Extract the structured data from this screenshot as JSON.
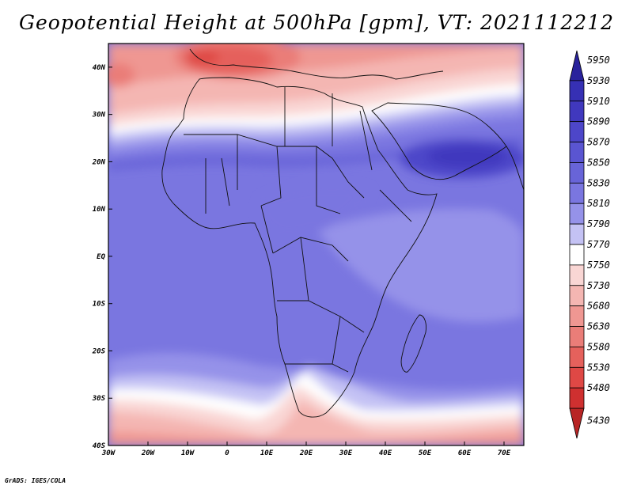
{
  "title": "Geopotential Height at 500hPa [gpm], VT: 2021112212",
  "credit": "GrADS: IGES/COLA",
  "map": {
    "lon_range": [
      -30,
      75
    ],
    "lat_range": [
      -40,
      45
    ],
    "lon_ticks": [
      {
        "value": -30,
        "label": "30W"
      },
      {
        "value": -20,
        "label": "20W"
      },
      {
        "value": -10,
        "label": "10W"
      },
      {
        "value": 0,
        "label": "0"
      },
      {
        "value": 10,
        "label": "10E"
      },
      {
        "value": 20,
        "label": "20E"
      },
      {
        "value": 30,
        "label": "30E"
      },
      {
        "value": 40,
        "label": "40E"
      },
      {
        "value": 50,
        "label": "50E"
      },
      {
        "value": 60,
        "label": "60E"
      },
      {
        "value": 70,
        "label": "70E"
      }
    ],
    "lat_ticks": [
      {
        "value": 40,
        "label": "40N"
      },
      {
        "value": 30,
        "label": "30N"
      },
      {
        "value": 20,
        "label": "20N"
      },
      {
        "value": 10,
        "label": "10N"
      },
      {
        "value": 0,
        "label": "EQ"
      },
      {
        "value": -10,
        "label": "10S"
      },
      {
        "value": -20,
        "label": "20S"
      },
      {
        "value": -30,
        "label": "30S"
      },
      {
        "value": -40,
        "label": "40S"
      }
    ]
  },
  "colorbar": {
    "levels": [
      {
        "label": "5950",
        "color": "#29229c"
      },
      {
        "label": "5930",
        "color": "#3630b4"
      },
      {
        "label": "5910",
        "color": "#4038be"
      },
      {
        "label": "5890",
        "color": "#4d46c9"
      },
      {
        "label": "5870",
        "color": "#5a55d1"
      },
      {
        "label": "5850",
        "color": "#6864d8"
      },
      {
        "label": "5830",
        "color": "#7a76e0"
      },
      {
        "label": "5810",
        "color": "#9592e9"
      },
      {
        "label": "5790",
        "color": "#c4c2f4"
      },
      {
        "label": "5770",
        "color": "#ffffff"
      },
      {
        "label": "5750",
        "color": "#f9d6d4"
      },
      {
        "label": "5730",
        "color": "#f4b6b2"
      },
      {
        "label": "5680",
        "color": "#ef9792"
      },
      {
        "label": "5630",
        "color": "#ea7d78"
      },
      {
        "label": "5580",
        "color": "#e5615c"
      },
      {
        "label": "5530",
        "color": "#df4845"
      },
      {
        "label": "5480",
        "color": "#cf3030"
      },
      {
        "label": "5430",
        "color": "#b82525"
      }
    ]
  }
}
